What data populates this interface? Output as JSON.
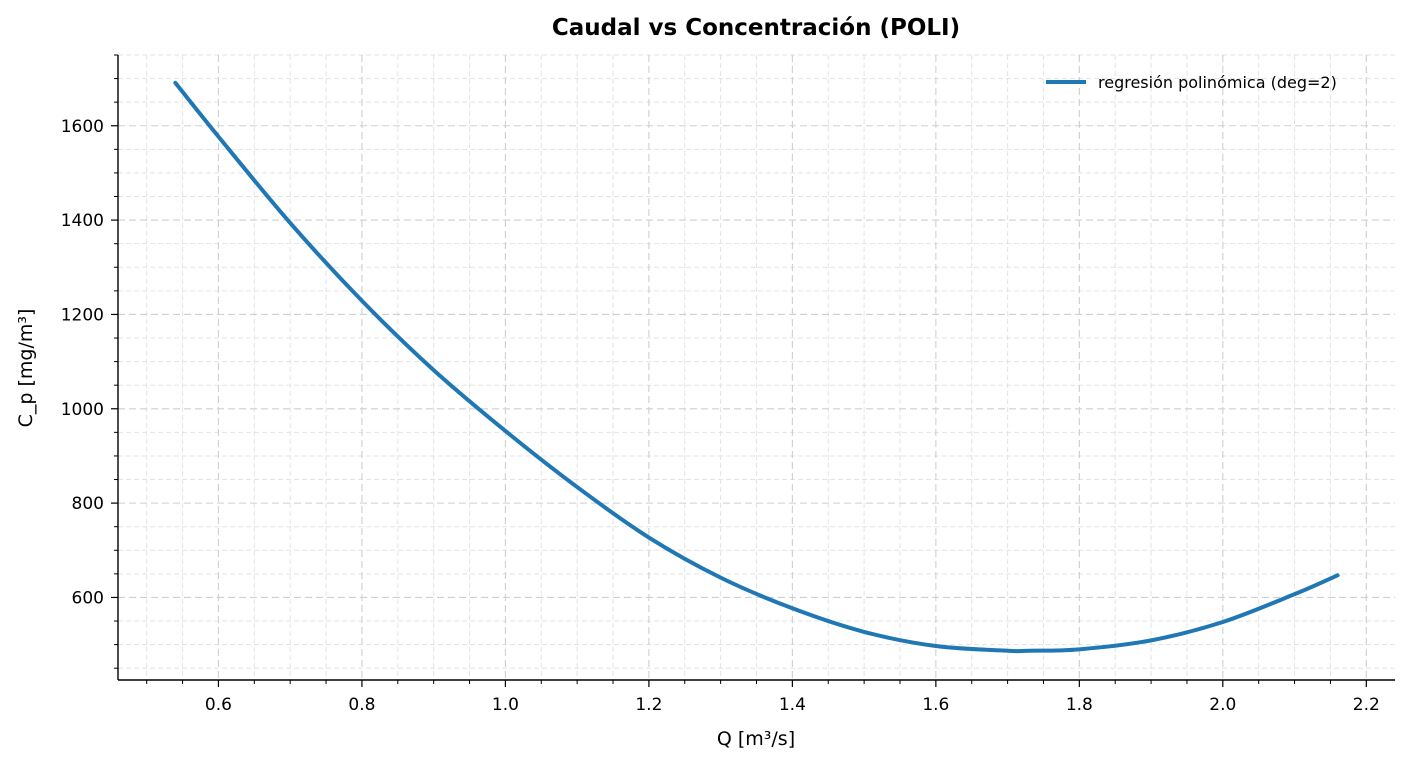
{
  "chart_data": {
    "type": "line",
    "title": "Caudal vs Concentración (POLI)",
    "xlabel": "Q [m³/s]",
    "ylabel": "C_p [mg/m³]",
    "xlim": [
      0.46,
      2.24
    ],
    "ylim": [
      425,
      1750
    ],
    "xticks": [
      0.6,
      0.8,
      1.0,
      1.2,
      1.4,
      1.6,
      1.8,
      2.0,
      2.2
    ],
    "xtick_labels": [
      "0.6",
      "0.8",
      "1.0",
      "1.2",
      "1.4",
      "1.6",
      "1.8",
      "2.0",
      "2.2"
    ],
    "yticks": [
      600,
      800,
      1000,
      1200,
      1400,
      1600
    ],
    "ytick_labels": [
      "600",
      "800",
      "1000",
      "1200",
      "1400",
      "1600"
    ],
    "grid": true,
    "minor_grid": true,
    "legend_position": "top-right",
    "series": [
      {
        "name": "regresión polinómica (deg=2)",
        "color": "#1f77b4",
        "x": [
          0.54,
          0.6,
          0.7,
          0.8,
          0.9,
          1.0,
          1.1,
          1.2,
          1.3,
          1.4,
          1.5,
          1.6,
          1.7,
          1.73,
          1.8,
          1.9,
          2.0,
          2.1,
          2.16
        ],
        "y": [
          1691,
          1577,
          1394,
          1229,
          1082,
          953,
          834,
          727,
          642,
          577,
          527,
          497,
          487,
          487,
          490,
          509,
          548,
          607,
          647
        ]
      }
    ]
  }
}
